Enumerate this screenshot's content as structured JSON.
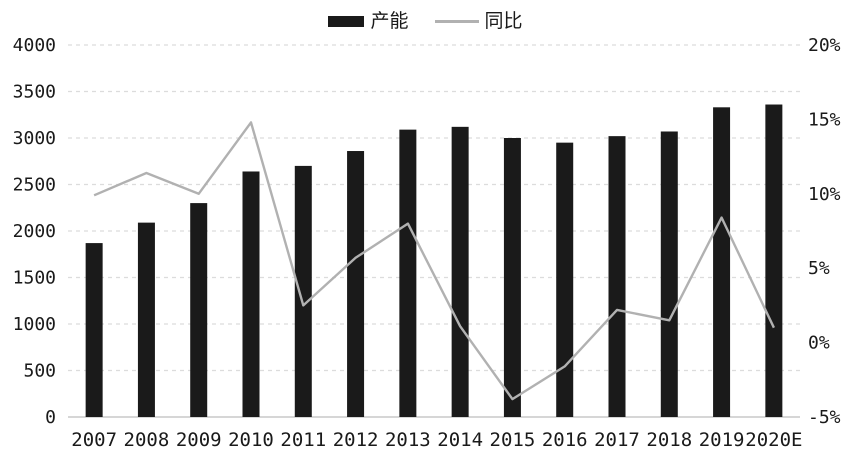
{
  "legend": {
    "capacity_label": "产能",
    "yoy_label": "同比"
  },
  "colors": {
    "bar": "#1a1a1a",
    "line": "#b1b1b1",
    "grid": "#dcdcdc",
    "axis_baseline": "#c8c8c8",
    "text": "#1a1a1a",
    "background": "#ffffff"
  },
  "chart_data": {
    "type": "bar",
    "subtype": "bar+line-dual-axis",
    "title": "",
    "categories": [
      "2007",
      "2008",
      "2009",
      "2010",
      "2011",
      "2012",
      "2013",
      "2014",
      "2015",
      "2016",
      "2017",
      "2018",
      "2019",
      "2020E"
    ],
    "series": [
      {
        "name": "产能",
        "type": "bar",
        "axis": "left",
        "values": [
          1870,
          2090,
          2300,
          2640,
          2700,
          2860,
          3090,
          3120,
          3000,
          2950,
          3020,
          3070,
          3330,
          3360
        ]
      },
      {
        "name": "同比",
        "type": "line",
        "axis": "right",
        "unit": "%",
        "values": [
          9.9,
          11.4,
          10.0,
          14.8,
          2.5,
          5.7,
          8.0,
          1.1,
          -3.8,
          -1.6,
          2.2,
          1.5,
          8.4,
          1.0
        ]
      }
    ],
    "left_axis": {
      "min": 0,
      "max": 4000,
      "step": 500,
      "tick_labels": [
        "0",
        "500",
        "1000",
        "1500",
        "2000",
        "2500",
        "3000",
        "3500",
        "4000"
      ]
    },
    "right_axis": {
      "min": -5,
      "max": 20,
      "step": 5,
      "tick_labels": [
        "-5%",
        "0%",
        "5%",
        "10%",
        "15%",
        "20%"
      ]
    },
    "grid": "horizontal-dashed",
    "legend_position": "top-center"
  }
}
